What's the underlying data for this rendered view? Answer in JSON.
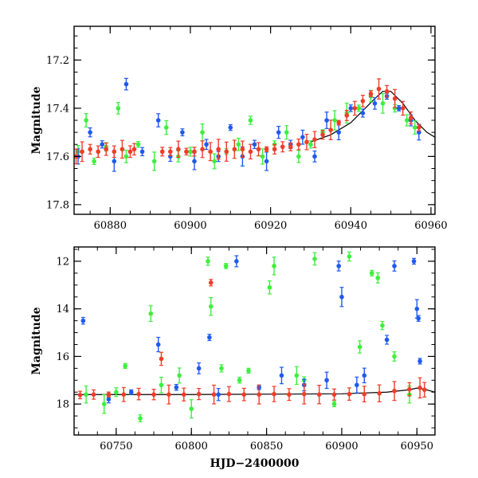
{
  "chart_data": [
    {
      "type": "scatter",
      "ylabel": "Magnitude",
      "xlabel": "",
      "xlim": [
        60871,
        60961
      ],
      "ylim": [
        17.84,
        17.06
      ],
      "y_inverted": true,
      "x_ticks": [
        60880,
        60900,
        60920,
        60940,
        60960
      ],
      "x_tick_labels": [
        "60880",
        "60900",
        "60920",
        "60940",
        "60960"
      ],
      "y_ticks": [
        17.2,
        17.4,
        17.6,
        17.8
      ],
      "y_tick_labels": [
        "17.2",
        "17.4",
        "17.6",
        "17.8"
      ],
      "error_bars": true,
      "series": [
        {
          "color": "#3cf03c",
          "x": [
            60872,
            60874,
            60876,
            60879,
            60882,
            60884,
            60887,
            60891,
            60894,
            60897,
            60900,
            60903,
            60906,
            60909,
            60912,
            60915,
            60918,
            60921,
            60924,
            60927,
            60930,
            60933,
            60936,
            60939,
            60942,
            60945,
            60948,
            60951,
            60954,
            60956
          ],
          "y": [
            17.58,
            17.45,
            17.62,
            17.56,
            17.4,
            17.6,
            17.55,
            17.62,
            17.48,
            17.6,
            17.58,
            17.5,
            17.62,
            17.58,
            17.55,
            17.45,
            17.6,
            17.55,
            17.5,
            17.6,
            17.55,
            17.5,
            17.45,
            17.42,
            17.4,
            17.35,
            17.38,
            17.4,
            17.45,
            17.48
          ]
        },
        {
          "color": "#1e5af0",
          "x": [
            60872,
            60875,
            60878,
            60881,
            60884,
            60888,
            60892,
            60895,
            60898,
            60901,
            60904,
            60907,
            60910,
            60913,
            60916,
            60919,
            60922,
            60925,
            60928,
            60931,
            60934,
            60937,
            60940,
            60943,
            60946,
            60949,
            60952,
            60955,
            60957
          ],
          "y": [
            17.6,
            17.5,
            17.55,
            17.62,
            17.3,
            17.58,
            17.45,
            17.6,
            17.5,
            17.62,
            17.55,
            17.6,
            17.48,
            17.6,
            17.55,
            17.62,
            17.5,
            17.55,
            17.52,
            17.6,
            17.45,
            17.5,
            17.4,
            17.42,
            17.38,
            17.35,
            17.4,
            17.45,
            17.5
          ]
        },
        {
          "color": "#f03c28",
          "x": [
            60871.5,
            60873,
            60875,
            60877,
            60879,
            60881,
            60883,
            60885,
            60886,
            60893,
            60895,
            60897,
            60899,
            60901,
            60903,
            60905,
            60907,
            60909,
            60911,
            60913,
            60915,
            60917,
            60919,
            60921,
            60923,
            60925,
            60927,
            60929,
            60931,
            60933,
            60935,
            60937,
            60939,
            60941,
            60943,
            60945,
            60947,
            60949,
            60951,
            60953,
            60955,
            60957
          ],
          "y": [
            17.6,
            17.58,
            17.57,
            17.58,
            17.57,
            17.58,
            17.57,
            17.58,
            17.57,
            17.58,
            17.58,
            17.57,
            17.58,
            17.58,
            17.57,
            17.58,
            17.57,
            17.58,
            17.57,
            17.57,
            17.58,
            17.57,
            17.57,
            17.57,
            17.56,
            17.56,
            17.55,
            17.54,
            17.53,
            17.51,
            17.49,
            17.46,
            17.43,
            17.4,
            17.37,
            17.34,
            17.32,
            17.33,
            17.36,
            17.4,
            17.44,
            17.48
          ]
        }
      ],
      "model_curve": {
        "color": "#000000",
        "x": [
          60930,
          60935,
          60940,
          60943,
          60946,
          60948,
          60950,
          60953,
          60956,
          60959,
          60961
        ],
        "y": [
          17.54,
          17.51,
          17.46,
          17.41,
          17.36,
          17.33,
          17.33,
          17.38,
          17.45,
          17.5,
          17.52
        ]
      }
    },
    {
      "type": "scatter",
      "ylabel": "Magnitude",
      "xlabel": "HJD−2400000",
      "xlim": [
        60722,
        60962
      ],
      "ylim": [
        19.3,
        11.4
      ],
      "y_inverted": true,
      "x_ticks": [
        60750,
        60800,
        60850,
        60900,
        60950
      ],
      "x_tick_labels": [
        "60750",
        "60800",
        "60850",
        "60900",
        "60950"
      ],
      "y_ticks": [
        12,
        14,
        16,
        18
      ],
      "y_tick_labels": [
        "12",
        "14",
        "16",
        "18"
      ],
      "error_bars": true,
      "series": [
        {
          "color": "#3cf03c",
          "x": [
            60730,
            60742,
            60750,
            60756,
            60766,
            60773,
            60780,
            60792,
            60800,
            60811,
            60813,
            60820,
            60823,
            60832,
            60838,
            60852,
            60855,
            60870,
            60875,
            60882,
            60895,
            60905,
            60912,
            60920,
            60924,
            60927,
            60935,
            60945
          ],
          "y": [
            17.6,
            18.0,
            17.5,
            16.4,
            18.6,
            14.2,
            17.2,
            16.8,
            18.2,
            12.0,
            13.9,
            16.5,
            12.2,
            17.0,
            16.6,
            13.1,
            12.2,
            16.8,
            17.0,
            11.9,
            18.0,
            11.8,
            15.6,
            12.5,
            12.7,
            14.7,
            16.0,
            17.6
          ]
        },
        {
          "color": "#1e5af0",
          "x": [
            60728,
            60745,
            60760,
            60778,
            60790,
            60805,
            60812,
            60818,
            60830,
            60845,
            60860,
            60875,
            60890,
            60898,
            60900,
            60910,
            60915,
            60930,
            60935,
            60948,
            60950,
            60951,
            60952
          ],
          "y": [
            14.5,
            17.8,
            17.5,
            15.5,
            17.3,
            16.5,
            15.2,
            17.6,
            12.0,
            17.3,
            16.8,
            17.2,
            17.0,
            12.2,
            13.5,
            17.2,
            16.8,
            15.3,
            12.2,
            12.0,
            14.0,
            14.4,
            16.2
          ]
        },
        {
          "color": "#f03c28",
          "x": [
            60726,
            60735,
            60745,
            60755,
            60765,
            60775,
            60780,
            60785,
            60795,
            60805,
            60813,
            60815,
            60825,
            60835,
            60845,
            60855,
            60865,
            60875,
            60885,
            60895,
            60905,
            60915,
            60925,
            60935,
            60945,
            60952,
            60955
          ],
          "y": [
            17.62,
            17.6,
            17.6,
            17.6,
            17.58,
            17.6,
            16.1,
            17.6,
            17.6,
            17.58,
            12.9,
            17.6,
            17.58,
            17.6,
            17.6,
            17.58,
            17.6,
            17.58,
            17.6,
            17.6,
            17.58,
            17.58,
            17.55,
            17.45,
            17.38,
            17.32,
            17.4
          ]
        }
      ],
      "model_curve": {
        "color": "#000000",
        "x": [
          60722,
          60800,
          60900,
          60930,
          60945,
          60950,
          60955,
          60962
        ],
        "y": [
          17.6,
          17.6,
          17.57,
          17.5,
          17.4,
          17.33,
          17.38,
          17.5
        ]
      }
    }
  ]
}
